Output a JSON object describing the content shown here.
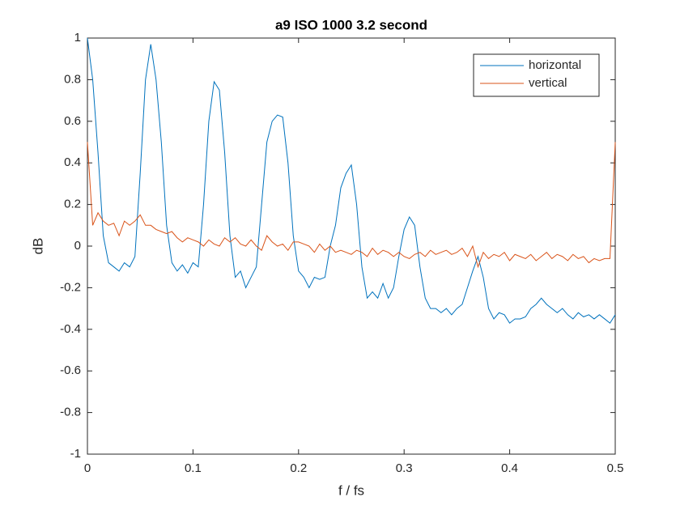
{
  "chart_data": {
    "type": "line",
    "title": "a9 ISO 1000 3.2 second",
    "xlabel": "f / fs",
    "ylabel": "dB",
    "x": [
      0,
      0.005,
      0.01,
      0.015,
      0.02,
      0.025,
      0.03,
      0.035,
      0.04,
      0.045,
      0.05,
      0.055,
      0.06,
      0.065,
      0.07,
      0.075,
      0.08,
      0.085,
      0.09,
      0.095,
      0.1,
      0.105,
      0.11,
      0.115,
      0.12,
      0.125,
      0.13,
      0.135,
      0.14,
      0.145,
      0.15,
      0.155,
      0.16,
      0.165,
      0.17,
      0.175,
      0.18,
      0.185,
      0.19,
      0.195,
      0.2,
      0.205,
      0.21,
      0.215,
      0.22,
      0.225,
      0.23,
      0.235,
      0.24,
      0.245,
      0.25,
      0.255,
      0.26,
      0.265,
      0.27,
      0.275,
      0.28,
      0.285,
      0.29,
      0.295,
      0.3,
      0.305,
      0.31,
      0.315,
      0.32,
      0.325,
      0.33,
      0.335,
      0.34,
      0.345,
      0.35,
      0.355,
      0.36,
      0.365,
      0.37,
      0.375,
      0.38,
      0.385,
      0.39,
      0.395,
      0.4,
      0.405,
      0.41,
      0.415,
      0.42,
      0.425,
      0.43,
      0.435,
      0.44,
      0.445,
      0.45,
      0.455,
      0.46,
      0.465,
      0.47,
      0.475,
      0.48,
      0.485,
      0.49,
      0.495,
      0.5
    ],
    "series": [
      {
        "name": "horizontal",
        "color": "#0072BD",
        "values": [
          1.0,
          0.8,
          0.45,
          0.05,
          -0.08,
          -0.1,
          -0.12,
          -0.08,
          -0.1,
          -0.05,
          0.35,
          0.8,
          0.97,
          0.8,
          0.5,
          0.1,
          -0.08,
          -0.12,
          -0.09,
          -0.13,
          -0.08,
          -0.1,
          0.2,
          0.6,
          0.79,
          0.75,
          0.45,
          0.05,
          -0.15,
          -0.12,
          -0.2,
          -0.15,
          -0.1,
          0.2,
          0.5,
          0.6,
          0.63,
          0.62,
          0.4,
          0.05,
          -0.12,
          -0.15,
          -0.2,
          -0.15,
          -0.16,
          -0.15,
          0.0,
          0.1,
          0.28,
          0.35,
          0.39,
          0.2,
          -0.1,
          -0.25,
          -0.22,
          -0.25,
          -0.18,
          -0.25,
          -0.2,
          -0.05,
          0.08,
          0.14,
          0.1,
          -0.1,
          -0.25,
          -0.3,
          -0.3,
          -0.32,
          -0.3,
          -0.33,
          -0.3,
          -0.28,
          -0.2,
          -0.12,
          -0.05,
          -0.15,
          -0.3,
          -0.35,
          -0.32,
          -0.33,
          -0.37,
          -0.35,
          -0.35,
          -0.34,
          -0.3,
          -0.28,
          -0.25,
          -0.28,
          -0.3,
          -0.32,
          -0.3,
          -0.33,
          -0.35,
          -0.32,
          -0.34,
          -0.33,
          -0.35,
          -0.33,
          -0.35,
          -0.37,
          -0.33
        ]
      },
      {
        "name": "vertical",
        "color": "#D95319",
        "values": [
          0.5,
          0.1,
          0.16,
          0.12,
          0.1,
          0.11,
          0.05,
          0.12,
          0.1,
          0.12,
          0.15,
          0.1,
          0.1,
          0.08,
          0.07,
          0.06,
          0.07,
          0.04,
          0.02,
          0.04,
          0.03,
          0.02,
          0.0,
          0.03,
          0.01,
          0.0,
          0.04,
          0.02,
          0.04,
          0.01,
          0.0,
          0.03,
          0.0,
          -0.02,
          0.05,
          0.02,
          0.0,
          0.01,
          -0.02,
          0.02,
          0.02,
          0.01,
          0.0,
          -0.03,
          0.01,
          -0.02,
          0.0,
          -0.03,
          -0.02,
          -0.03,
          -0.04,
          -0.02,
          -0.03,
          -0.05,
          -0.01,
          -0.04,
          -0.02,
          -0.03,
          -0.05,
          -0.03,
          -0.05,
          -0.06,
          -0.04,
          -0.03,
          -0.05,
          -0.02,
          -0.04,
          -0.03,
          -0.02,
          -0.04,
          -0.03,
          -0.01,
          -0.05,
          0.0,
          -0.1,
          -0.03,
          -0.06,
          -0.04,
          -0.05,
          -0.03,
          -0.07,
          -0.04,
          -0.05,
          -0.06,
          -0.04,
          -0.07,
          -0.05,
          -0.03,
          -0.06,
          -0.04,
          -0.05,
          -0.07,
          -0.04,
          -0.06,
          -0.05,
          -0.08,
          -0.06,
          -0.07,
          -0.06,
          -0.06,
          0.5
        ]
      }
    ],
    "xlim": [
      0,
      0.5
    ],
    "xticks": [
      0,
      0.1,
      0.2,
      0.3,
      0.4,
      0.5
    ],
    "ylim": [
      -1,
      1
    ],
    "yticks": [
      -1,
      -0.8,
      -0.6,
      -0.4,
      -0.2,
      0,
      0.2,
      0.4,
      0.6,
      0.8,
      1
    ],
    "grid": false,
    "legend": "northeast"
  }
}
